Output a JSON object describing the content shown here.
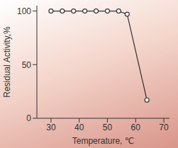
{
  "chart_data": {
    "type": "line",
    "x_label": "Temperature, ℃",
    "y_label": "Residual Activity,%",
    "x": [
      30,
      34,
      38,
      42,
      46,
      50,
      54,
      57,
      64
    ],
    "values": [
      100,
      100,
      100,
      100,
      100,
      100,
      100,
      97,
      17
    ],
    "color": "#333333",
    "marker": "circle",
    "xlim": [
      25,
      72
    ],
    "xticks": [
      30,
      40,
      50,
      60,
      70
    ],
    "ylim": [
      0,
      105
    ],
    "yticks": [
      0,
      50,
      100
    ],
    "grid": false
  }
}
